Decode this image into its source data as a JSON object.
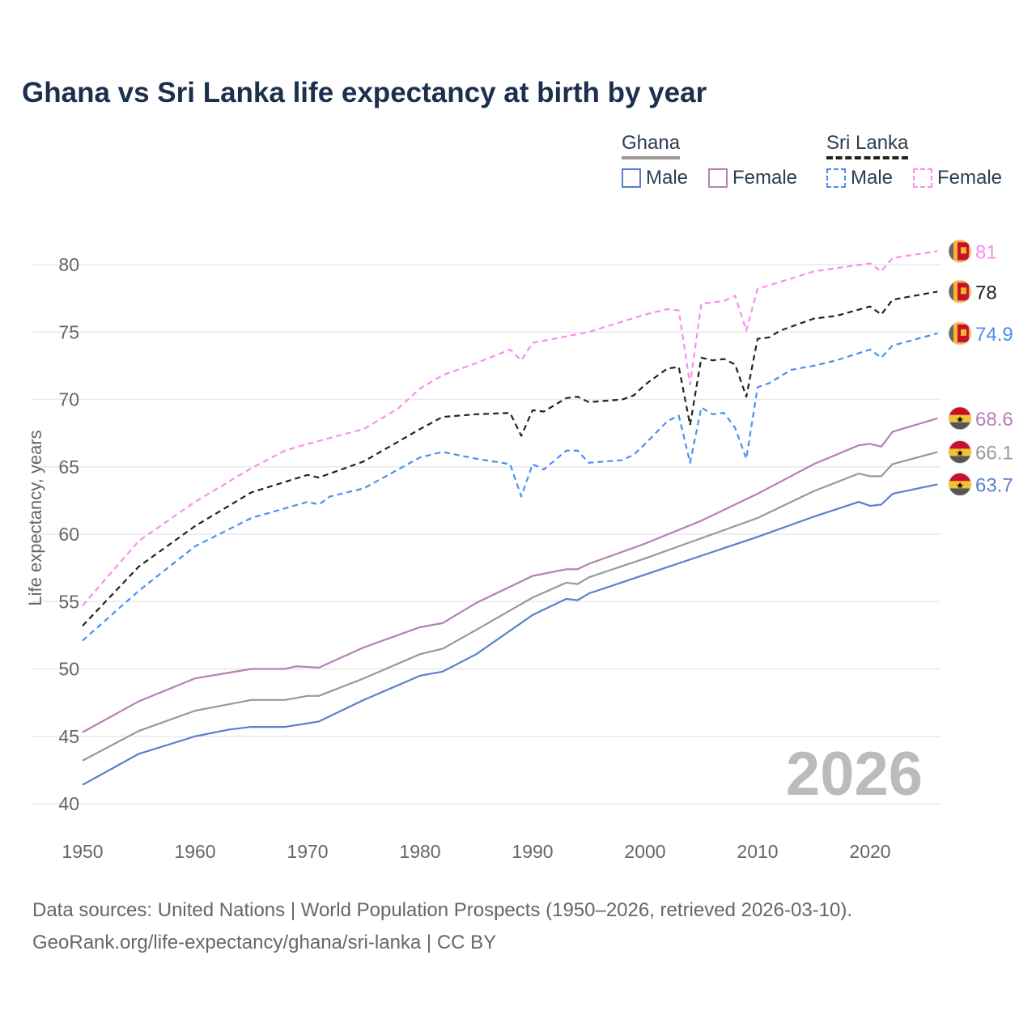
{
  "title": "Ghana vs Sri Lanka life expectancy at birth by year",
  "legend": {
    "groups": [
      {
        "name": "Ghana",
        "items": [
          {
            "label": "Male",
            "color": "#5b7fcc"
          },
          {
            "label": "Female",
            "color": "#b57fb5"
          }
        ]
      },
      {
        "name": "Sri Lanka",
        "items": [
          {
            "label": "Male",
            "color": "#4a90f0"
          },
          {
            "label": "Female",
            "color": "#f98ef0"
          }
        ]
      }
    ]
  },
  "watermark_year": "2026",
  "source": {
    "line1": "Data sources: United Nations | World Population Prospects (1950–2026, retrieved 2026-03-10).",
    "line2": "GeoRank.org/life-expectancy/ghana/sri-lanka | CC BY"
  },
  "chart_data": {
    "type": "line",
    "title": "Ghana vs Sri Lanka life expectancy at birth by year",
    "xlabel": "",
    "ylabel": "Life expectancy, years",
    "xlim": [
      1950,
      2026
    ],
    "ylim": [
      40,
      82
    ],
    "xticks": [
      "1950",
      "1960",
      "1970",
      "1980",
      "1990",
      "2000",
      "2010",
      "2020"
    ],
    "yticks": [
      "40",
      "45",
      "50",
      "55",
      "60",
      "65",
      "70",
      "75",
      "80"
    ],
    "grid": true,
    "legend_position": "top-right",
    "series": [
      {
        "name": "Sri Lanka Female",
        "country": "Sri Lanka",
        "color": "#f98ef0",
        "dashed": true,
        "end_label": "81",
        "x": [
          1950,
          1955,
          1960,
          1965,
          1968,
          1970,
          1975,
          1978,
          1980,
          1982,
          1985,
          1988,
          1989,
          1990,
          1995,
          2000,
          2002,
          2003,
          2004,
          2005,
          2007,
          2008,
          2009,
          2010,
          2015,
          2020,
          2021,
          2022,
          2026
        ],
        "y": [
          54.7,
          59.5,
          62.4,
          64.9,
          66.2,
          66.7,
          67.8,
          69.3,
          70.8,
          71.8,
          72.7,
          73.7,
          72.9,
          74.2,
          75.0,
          76.3,
          76.7,
          76.6,
          71.1,
          77.1,
          77.3,
          77.7,
          75.1,
          78.2,
          79.5,
          80.1,
          79.5,
          80.5,
          81.0
        ]
      },
      {
        "name": "Sri Lanka",
        "country": "Sri Lanka",
        "color": "#222222",
        "dashed": true,
        "end_label": "78",
        "x": [
          1950,
          1955,
          1960,
          1965,
          1970,
          1971,
          1975,
          1980,
          1982,
          1985,
          1988,
          1989,
          1990,
          1991,
          1993,
          1994,
          1995,
          1998,
          1999,
          2000,
          2002,
          2003,
          2004,
          2005,
          2006,
          2007,
          2008,
          2009,
          2010,
          2011,
          2012,
          2015,
          2017,
          2020,
          2021,
          2022,
          2026
        ],
        "y": [
          53.2,
          57.6,
          60.6,
          63.1,
          64.4,
          64.2,
          65.4,
          67.8,
          68.7,
          68.9,
          69.0,
          67.3,
          69.2,
          69.1,
          70.1,
          70.2,
          69.8,
          70.0,
          70.3,
          71.1,
          72.3,
          72.4,
          68.1,
          73.1,
          72.9,
          73.0,
          72.6,
          70.2,
          74.5,
          74.6,
          75.1,
          76.0,
          76.2,
          76.9,
          76.3,
          77.4,
          78.0
        ]
      },
      {
        "name": "Sri Lanka Male",
        "country": "Sri Lanka",
        "color": "#4a90f0",
        "dashed": true,
        "end_label": "74.9",
        "x": [
          1950,
          1955,
          1960,
          1965,
          1970,
          1971,
          1972,
          1975,
          1980,
          1982,
          1985,
          1988,
          1989,
          1990,
          1991,
          1993,
          1994,
          1995,
          1998,
          1999,
          2000,
          2002,
          2003,
          2004,
          2005,
          2006,
          2007,
          2008,
          2009,
          2010,
          2011,
          2013,
          2015,
          2017,
          2020,
          2021,
          2022,
          2026
        ],
        "y": [
          52.1,
          55.8,
          59.1,
          61.2,
          62.4,
          62.2,
          62.8,
          63.4,
          65.7,
          66.1,
          65.6,
          65.2,
          62.8,
          65.2,
          64.8,
          66.2,
          66.2,
          65.3,
          65.5,
          65.9,
          66.7,
          68.4,
          68.8,
          65.3,
          69.4,
          68.9,
          69.0,
          67.9,
          65.6,
          70.9,
          71.2,
          72.2,
          72.5,
          72.9,
          73.7,
          73.1,
          74.0,
          74.9
        ]
      },
      {
        "name": "Ghana Female",
        "country": "Ghana",
        "color": "#b57fb5",
        "dashed": false,
        "end_label": "68.6",
        "x": [
          1950,
          1955,
          1960,
          1965,
          1968,
          1969,
          1971,
          1975,
          1980,
          1982,
          1985,
          1990,
          1993,
          1994,
          1995,
          2000,
          2005,
          2010,
          2015,
          2019,
          2020,
          2021,
          2022,
          2026
        ],
        "y": [
          45.3,
          47.6,
          49.3,
          50.0,
          50.0,
          50.2,
          50.1,
          51.6,
          53.1,
          53.4,
          54.9,
          56.9,
          57.4,
          57.4,
          57.8,
          59.3,
          61.0,
          63.0,
          65.2,
          66.6,
          66.7,
          66.5,
          67.6,
          68.6
        ]
      },
      {
        "name": "Ghana",
        "country": "Ghana",
        "color": "#999999",
        "dashed": false,
        "end_label": "66.1",
        "x": [
          1950,
          1955,
          1960,
          1965,
          1968,
          1970,
          1971,
          1975,
          1980,
          1982,
          1985,
          1990,
          1993,
          1994,
          1995,
          2000,
          2005,
          2010,
          2015,
          2019,
          2020,
          2021,
          2022,
          2026
        ],
        "y": [
          43.2,
          45.4,
          46.9,
          47.7,
          47.7,
          48.0,
          48.0,
          49.3,
          51.1,
          51.5,
          52.9,
          55.3,
          56.4,
          56.3,
          56.8,
          58.2,
          59.7,
          61.2,
          63.2,
          64.5,
          64.3,
          64.3,
          65.2,
          66.1
        ]
      },
      {
        "name": "Ghana Male",
        "country": "Ghana",
        "color": "#5b7fcc",
        "dashed": false,
        "end_label": "63.7",
        "x": [
          1950,
          1955,
          1960,
          1963,
          1965,
          1968,
          1971,
          1975,
          1980,
          1982,
          1985,
          1990,
          1993,
          1994,
          1995,
          2000,
          2005,
          2010,
          2015,
          2019,
          2020,
          2021,
          2022,
          2026
        ],
        "y": [
          41.4,
          43.7,
          45.0,
          45.5,
          45.7,
          45.7,
          46.1,
          47.7,
          49.5,
          49.8,
          51.1,
          54.0,
          55.2,
          55.1,
          55.6,
          57.0,
          58.4,
          59.8,
          61.3,
          62.4,
          62.1,
          62.2,
          63.0,
          63.7
        ]
      }
    ]
  }
}
